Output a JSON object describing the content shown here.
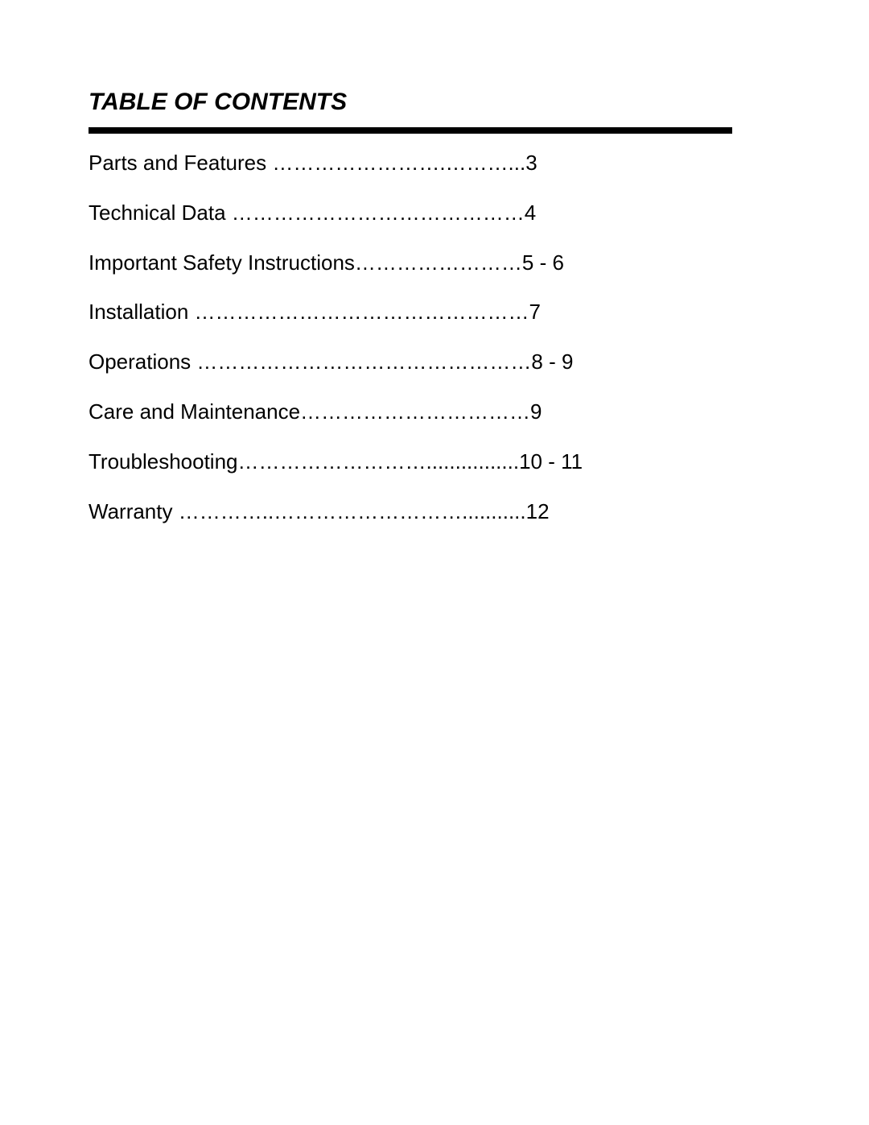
{
  "document": {
    "title": "TABLE OF CONTENTS",
    "title_fontsize": 30,
    "title_fontweight": "bold",
    "title_style": "italic",
    "divider_color": "#000000",
    "divider_height": 8,
    "background_color": "#ffffff",
    "text_color": "#000000",
    "entry_fontsize": 26,
    "entries": [
      {
        "text": "Parts and Features …………………….………...3"
      },
      {
        "text": "Technical Data ……………………………………4"
      },
      {
        "text": "Important Safety Instructions……………………5 - 6"
      },
      {
        "text": "Installation …………………………………………7"
      },
      {
        "text": "Operations …………………………………………8 - 9"
      },
      {
        "text": "Care and Maintenance……………………………9"
      },
      {
        "text": "Troubleshooting………………………................10 - 11"
      },
      {
        "text": "Warranty …………..………………………...........12"
      }
    ]
  }
}
